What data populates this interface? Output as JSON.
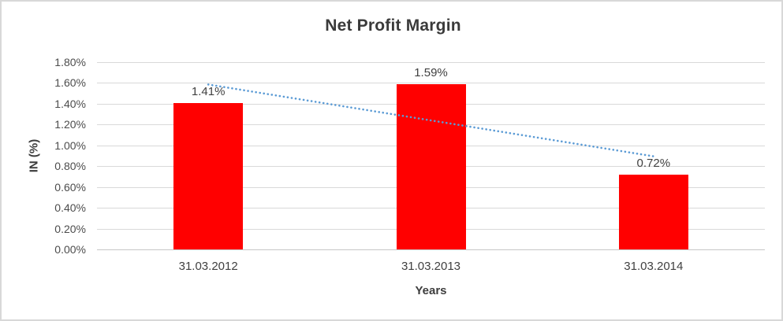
{
  "chart_data": {
    "type": "bar",
    "title": "Net Profit Margin",
    "xlabel": "Years",
    "ylabel": "IN (%)",
    "categories": [
      "31.03.2012",
      "31.03.2013",
      "31.03.2014"
    ],
    "values": [
      1.41,
      1.59,
      0.72
    ],
    "data_labels": [
      "1.41%",
      "1.59%",
      "0.72%"
    ],
    "ylim": [
      0,
      1.8
    ],
    "ytick_step": 0.2,
    "yticks": [
      "1.80%",
      "1.60%",
      "1.40%",
      "1.20%",
      "1.00%",
      "0.80%",
      "0.60%",
      "0.40%",
      "0.20%",
      "0.00%"
    ],
    "grid": true,
    "legend": "none",
    "bar_color": "#FF0000",
    "trendline": {
      "type": "linear",
      "style": "dotted",
      "color": "#5B9BD5",
      "start_value": 1.585,
      "end_value": 0.895
    }
  }
}
